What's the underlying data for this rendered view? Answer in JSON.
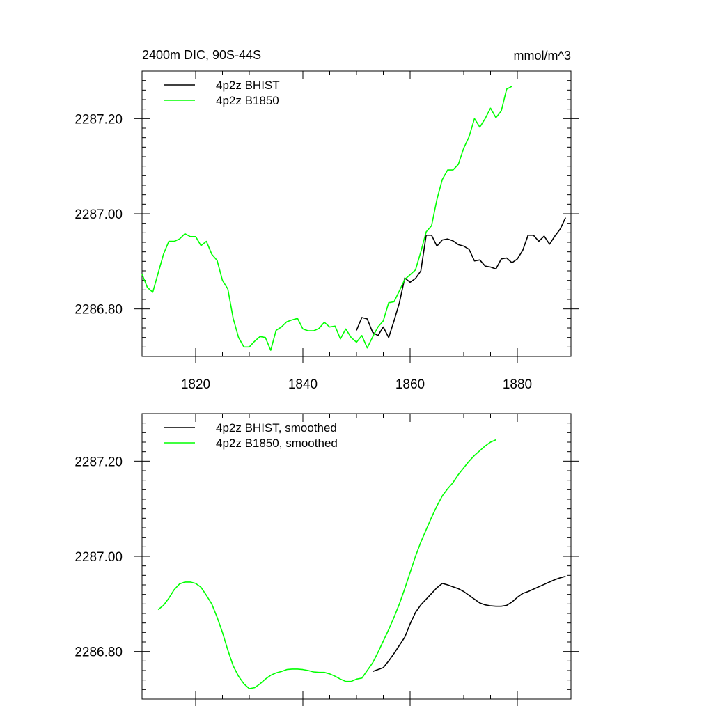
{
  "chart_data": [
    {
      "type": "line",
      "title": "2400m DIC, 90S-44S",
      "units_label": "mmol/m^3",
      "x_tick_labels": [
        "1820",
        "1840",
        "1860",
        "1880"
      ],
      "y_tick_labels": [
        "2287.20",
        "2287.00",
        "2286.80"
      ],
      "xlim": [
        1810,
        1890
      ],
      "ylim": [
        2286.7,
        2287.3
      ],
      "grid": false,
      "legend_position": "top-left",
      "series": [
        {
          "name": "4p2z BHIST",
          "color": "#000000",
          "x": [
            1850,
            1851,
            1852,
            1853,
            1854,
            1855,
            1856,
            1857,
            1858,
            1859,
            1860,
            1861,
            1862,
            1863,
            1864,
            1865,
            1866,
            1867,
            1868,
            1869,
            1870,
            1871,
            1872,
            1873,
            1874,
            1875,
            1876,
            1877,
            1878,
            1879,
            1880,
            1881,
            1882,
            1883,
            1884,
            1885,
            1886,
            1887,
            1888,
            1889
          ],
          "y": [
            2286.755,
            2286.782,
            2286.779,
            2286.751,
            2286.744,
            2286.762,
            2286.74,
            2286.775,
            2286.813,
            2286.865,
            2286.856,
            2286.864,
            2286.88,
            2286.955,
            2286.955,
            2286.932,
            2286.945,
            2286.947,
            2286.943,
            2286.935,
            2286.932,
            2286.925,
            2286.901,
            2286.903,
            2286.89,
            2286.888,
            2286.884,
            2286.905,
            2286.907,
            2286.897,
            2286.905,
            2286.923,
            2286.955,
            2286.955,
            2286.942,
            2286.953,
            2286.936,
            2286.953,
            2286.968,
            2286.992
          ]
        },
        {
          "name": "4p2z B1850",
          "color": "#00ff00",
          "x": [
            1810,
            1811,
            1812,
            1813,
            1814,
            1815,
            1816,
            1817,
            1818,
            1819,
            1820,
            1821,
            1822,
            1823,
            1824,
            1825,
            1826,
            1827,
            1828,
            1829,
            1830,
            1831,
            1832,
            1833,
            1834,
            1835,
            1836,
            1837,
            1838,
            1839,
            1840,
            1841,
            1842,
            1843,
            1844,
            1845,
            1846,
            1847,
            1848,
            1849,
            1850,
            1851,
            1852,
            1853,
            1854,
            1855,
            1856,
            1857,
            1858,
            1859,
            1860,
            1861,
            1862,
            1863,
            1864,
            1865,
            1866,
            1867,
            1868,
            1869,
            1870,
            1871,
            1872,
            1873,
            1874,
            1875,
            1876,
            1877,
            1878,
            1879
          ],
          "y": [
            2286.873,
            2286.845,
            2286.835,
            2286.875,
            2286.915,
            2286.942,
            2286.942,
            2286.947,
            2286.958,
            2286.952,
            2286.952,
            2286.933,
            2286.942,
            2286.915,
            2286.902,
            2286.86,
            2286.842,
            2286.78,
            2286.74,
            2286.72,
            2286.72,
            2286.732,
            2286.742,
            2286.74,
            2286.713,
            2286.755,
            2286.762,
            2286.773,
            2286.777,
            2286.78,
            2286.758,
            2286.754,
            2286.754,
            2286.759,
            2286.772,
            2286.762,
            2286.764,
            2286.737,
            2286.758,
            2286.74,
            2286.73,
            2286.744,
            2286.718,
            2286.741,
            2286.762,
            2286.775,
            2286.813,
            2286.815,
            2286.838,
            2286.862,
            2286.872,
            2286.882,
            2286.92,
            2286.962,
            2286.975,
            2287.03,
            2287.072,
            2287.092,
            2287.092,
            2287.104,
            2287.138,
            2287.162,
            2287.2,
            2287.182,
            2287.2,
            2287.222,
            2287.202,
            2287.216,
            2287.262,
            2287.268
          ]
        }
      ]
    },
    {
      "type": "line",
      "x_tick_labels": [],
      "y_tick_labels": [
        "2287.20",
        "2287.00",
        "2286.80"
      ],
      "xlim": [
        1810,
        1890
      ],
      "ylim": [
        2286.7,
        2287.3
      ],
      "grid": false,
      "legend_position": "top-left",
      "series": [
        {
          "name": "4p2z BHIST, smoothed",
          "color": "#000000",
          "x": [
            1853,
            1854,
            1855,
            1856,
            1857,
            1858,
            1859,
            1860,
            1861,
            1862,
            1863,
            1864,
            1865,
            1866,
            1867,
            1868,
            1869,
            1870,
            1871,
            1872,
            1873,
            1874,
            1875,
            1876,
            1877,
            1878,
            1879,
            1880,
            1881,
            1882,
            1883,
            1884,
            1885,
            1886,
            1887,
            1888,
            1889
          ],
          "y": [
            2286.758,
            2286.762,
            2286.766,
            2286.78,
            2286.796,
            2286.813,
            2286.83,
            2286.858,
            2286.882,
            2286.898,
            2286.91,
            2286.922,
            2286.934,
            2286.943,
            2286.94,
            2286.936,
            2286.932,
            2286.926,
            2286.918,
            2286.91,
            2286.902,
            2286.898,
            2286.896,
            2286.895,
            2286.895,
            2286.897,
            2286.904,
            2286.914,
            2286.922,
            2286.926,
            2286.931,
            2286.936,
            2286.941,
            2286.946,
            2286.951,
            2286.955,
            2286.958
          ]
        },
        {
          "name": "4p2z B1850, smoothed",
          "color": "#00ff00",
          "x": [
            1813,
            1814,
            1815,
            1816,
            1817,
            1818,
            1819,
            1820,
            1821,
            1822,
            1823,
            1824,
            1825,
            1826,
            1827,
            1828,
            1829,
            1830,
            1831,
            1832,
            1833,
            1834,
            1835,
            1836,
            1837,
            1838,
            1839,
            1840,
            1841,
            1842,
            1843,
            1844,
            1845,
            1846,
            1847,
            1848,
            1849,
            1850,
            1851,
            1852,
            1853,
            1854,
            1855,
            1856,
            1857,
            1858,
            1859,
            1860,
            1861,
            1862,
            1863,
            1864,
            1865,
            1866,
            1867,
            1868,
            1869,
            1870,
            1871,
            1872,
            1873,
            1874,
            1875,
            1876
          ],
          "y": [
            2286.888,
            2286.897,
            2286.912,
            2286.93,
            2286.942,
            2286.946,
            2286.946,
            2286.943,
            2286.935,
            2286.918,
            2286.9,
            2286.872,
            2286.84,
            2286.803,
            2286.77,
            2286.748,
            2286.732,
            2286.722,
            2286.724,
            2286.732,
            2286.742,
            2286.75,
            2286.755,
            2286.758,
            2286.762,
            2286.763,
            2286.763,
            2286.762,
            2286.76,
            2286.757,
            2286.756,
            2286.756,
            2286.753,
            2286.748,
            2286.742,
            2286.737,
            2286.737,
            2286.742,
            2286.744,
            2286.76,
            2286.776,
            2286.798,
            2286.822,
            2286.846,
            2286.872,
            2286.9,
            2286.932,
            2286.966,
            2287.0,
            2287.03,
            2287.056,
            2287.082,
            2287.106,
            2287.127,
            2287.142,
            2287.155,
            2287.172,
            2287.186,
            2287.2,
            2287.212,
            2287.222,
            2287.232,
            2287.24,
            2287.245
          ]
        }
      ]
    }
  ]
}
